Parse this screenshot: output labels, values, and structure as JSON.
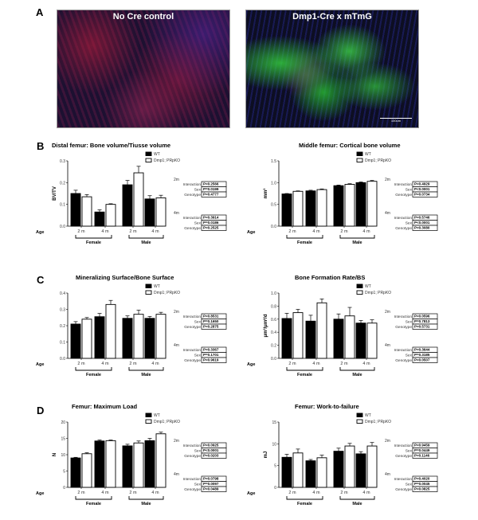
{
  "panel_labels": {
    "a": "A",
    "b": "B",
    "c": "C",
    "d": "D"
  },
  "panel_a": {
    "left_title": "No  Cre control",
    "right_title": "Dmp1-Cre x mTmG",
    "scale_bar": "100um"
  },
  "chart_data": [
    {
      "type": "bar",
      "title": "Distal femur: Bone volume/Tiusse volume",
      "ylabel": "BV/TV",
      "xlabel": "Age",
      "ylim": [
        0,
        0.3
      ],
      "yticks": [
        "0.0",
        "0.1",
        "0.2",
        "0.3"
      ],
      "categories": [
        "2 m",
        "4 m",
        "2 m",
        "4 m"
      ],
      "groups": [
        "Female",
        "Male"
      ],
      "series": [
        {
          "name": "WT",
          "values": [
            0.15,
            0.065,
            0.19,
            0.125
          ],
          "errors": [
            0.015,
            0.01,
            0.02,
            0.015
          ],
          "color": "#000000"
        },
        {
          "name": "Dmp1; PRpKO",
          "values": [
            0.135,
            0.1,
            0.245,
            0.13
          ],
          "errors": [
            0.01,
            0.003,
            0.03,
            0.012
          ],
          "color": "#ffffff"
        }
      ],
      "stats": [
        {
          "age": "2m",
          "rows": [
            [
              "Interaction",
              "P=0.2566"
            ],
            [
              "Sex",
              "P=0.0199"
            ],
            [
              "Genotype",
              "P=0.4777"
            ]
          ]
        },
        {
          "age": "4m",
          "rows": [
            [
              "Interaction",
              "P=0.3914"
            ],
            [
              "Sex",
              "P=0.0186"
            ],
            [
              "Genotype",
              "P=0.2525"
            ]
          ]
        }
      ]
    },
    {
      "type": "bar",
      "title": "Middle femur: Cortical bone volume",
      "ylabel": "mm³",
      "xlabel": "Age",
      "ylim": [
        0,
        1.5
      ],
      "yticks": [
        "0.0",
        "0.5",
        "1.0",
        "1.5"
      ],
      "categories": [
        "2 m",
        "4 m",
        "2 m",
        "4 m"
      ],
      "groups": [
        "Female",
        "Male"
      ],
      "series": [
        {
          "name": "WT",
          "values": [
            0.74,
            0.81,
            0.93,
            1.0
          ],
          "errors": [
            0.01,
            0.015,
            0.015,
            0.015
          ],
          "color": "#000000"
        },
        {
          "name": "Dmp1; PRpKO",
          "values": [
            0.8,
            0.84,
            0.96,
            1.03
          ],
          "errors": [
            0.01,
            0.015,
            0.015,
            0.02
          ],
          "color": "#ffffff"
        }
      ],
      "stats": [
        {
          "age": "2m",
          "rows": [
            [
              "Interaction",
              "P=0.4929"
            ],
            [
              "Sex",
              "P<0.0001"
            ],
            [
              "Genotype",
              "P=0.0734"
            ]
          ]
        },
        {
          "age": "4m",
          "rows": [
            [
              "Interaction",
              "P=0.5746"
            ],
            [
              "Sex",
              "P<0.0001"
            ],
            [
              "Genotype",
              "P=0.3080"
            ]
          ]
        }
      ]
    },
    {
      "type": "bar",
      "title": "Mineralizing Surface/Bone Surface",
      "ylabel": "",
      "xlabel": "Age",
      "ylim": [
        0,
        0.4
      ],
      "yticks": [
        "0.0",
        "0.1",
        "0.2",
        "0.3",
        "0.4"
      ],
      "categories": [
        "2 m",
        "4 m",
        "2 m",
        "4 m"
      ],
      "groups": [
        "Female",
        "Male"
      ],
      "series": [
        {
          "name": "WT",
          "values": [
            0.21,
            0.255,
            0.245,
            0.245
          ],
          "errors": [
            0.015,
            0.02,
            0.015,
            0.012
          ],
          "color": "#000000"
        },
        {
          "name": "Dmp1; PRpKO",
          "values": [
            0.24,
            0.33,
            0.27,
            0.27
          ],
          "errors": [
            0.01,
            0.025,
            0.025,
            0.012
          ],
          "color": "#ffffff"
        }
      ],
      "stats": [
        {
          "age": "2m",
          "rows": [
            [
              "Interaction",
              "P=0.8531"
            ],
            [
              "Sex",
              "P=0.1650"
            ],
            [
              "Genotype",
              "P=0.2875"
            ]
          ]
        },
        {
          "age": "4m",
          "rows": [
            [
              "Interaction",
              "P=0.3367"
            ],
            [
              "Sex",
              "P=0.1701"
            ],
            [
              "Genotype",
              "P=0.9619"
            ]
          ]
        }
      ]
    },
    {
      "type": "bar",
      "title": "Bone Formation Rate/BS",
      "ylabel": "μm³/μm²/d",
      "xlabel": "Age",
      "ylim": [
        0,
        1.0
      ],
      "yticks": [
        "0.0",
        "0.2",
        "0.4",
        "0.6",
        "0.8",
        "1.0"
      ],
      "categories": [
        "2 m",
        "4 m",
        "2 m",
        "4 m"
      ],
      "groups": [
        "Female",
        "Male"
      ],
      "series": [
        {
          "name": "WT",
          "values": [
            0.61,
            0.57,
            0.6,
            0.54
          ],
          "errors": [
            0.08,
            0.09,
            0.08,
            0.04
          ],
          "color": "#000000"
        },
        {
          "name": "Dmp1; PRpKO",
          "values": [
            0.7,
            0.85,
            0.65,
            0.54
          ],
          "errors": [
            0.05,
            0.06,
            0.13,
            0.05
          ],
          "color": "#ffffff"
        }
      ],
      "stats": [
        {
          "age": "2m",
          "rows": [
            [
              "Interaction",
              "P=0.0596"
            ],
            [
              "Sex",
              "P=0.7813"
            ],
            [
              "Genotype",
              "P=0.5731"
            ]
          ]
        },
        {
          "age": "4m",
          "rows": [
            [
              "Interaction",
              "P=0.3644"
            ],
            [
              "Sex",
              "P=0.3185"
            ],
            [
              "Genotype",
              "P=0.0507"
            ]
          ]
        }
      ]
    },
    {
      "type": "bar",
      "title": "Femur: Maximum Load",
      "ylabel": "N",
      "xlabel": "Age",
      "ylim": [
        0,
        20
      ],
      "yticks": [
        "0",
        "5",
        "10",
        "15",
        "20"
      ],
      "categories": [
        "2 m",
        "4 m",
        "2 m",
        "4 m"
      ],
      "groups": [
        "Female",
        "Male"
      ],
      "series": [
        {
          "name": "WT",
          "values": [
            9.0,
            14.2,
            12.7,
            14.3
          ],
          "errors": [
            0.2,
            0.3,
            0.5,
            0.7
          ],
          "color": "#000000"
        },
        {
          "name": "Dmp1; PRpKO",
          "values": [
            10.3,
            14.3,
            13.6,
            16.4
          ],
          "errors": [
            0.3,
            0.2,
            0.6,
            0.5
          ],
          "color": "#ffffff"
        }
      ],
      "stats": [
        {
          "age": "2m",
          "rows": [
            [
              "Interaction",
              "P=0.0925"
            ],
            [
              "Sex",
              "P<0.0001"
            ],
            [
              "Genotype",
              "P=0.0203"
            ]
          ]
        },
        {
          "age": "4m",
          "rows": [
            [
              "Interaction",
              "P=0.0798"
            ],
            [
              "Sex",
              "P=0.0097"
            ],
            [
              "Genotype",
              "P=0.0489"
            ]
          ]
        }
      ]
    },
    {
      "type": "bar",
      "title": "Femur: Work-to-failure",
      "ylabel": "mJ",
      "xlabel": "Age",
      "ylim": [
        0,
        15
      ],
      "yticks": [
        "0",
        "5",
        "10",
        "15"
      ],
      "categories": [
        "2 m",
        "4 m",
        "2 m",
        "4 m"
      ],
      "groups": [
        "Female",
        "Male"
      ],
      "series": [
        {
          "name": "WT",
          "values": [
            6.9,
            6.1,
            8.3,
            7.7
          ],
          "errors": [
            0.7,
            0.3,
            0.7,
            0.5
          ],
          "color": "#000000"
        },
        {
          "name": "Dmp1; PRpKO",
          "values": [
            7.9,
            6.8,
            9.5,
            9.5
          ],
          "errors": [
            0.9,
            0.6,
            0.6,
            0.8
          ],
          "color": "#ffffff"
        }
      ],
      "stats": [
        {
          "age": "2m",
          "rows": [
            [
              "Interaction",
              "P=0.9459"
            ],
            [
              "Sex",
              "P=0.0449"
            ],
            [
              "Genotype",
              "P=0.1146"
            ]
          ]
        },
        {
          "age": "4m",
          "rows": [
            [
              "Interaction",
              "P=0.4020"
            ],
            [
              "Sex",
              "P=0.0045"
            ],
            [
              "Genotype",
              "P=0.0825"
            ]
          ]
        }
      ]
    }
  ]
}
